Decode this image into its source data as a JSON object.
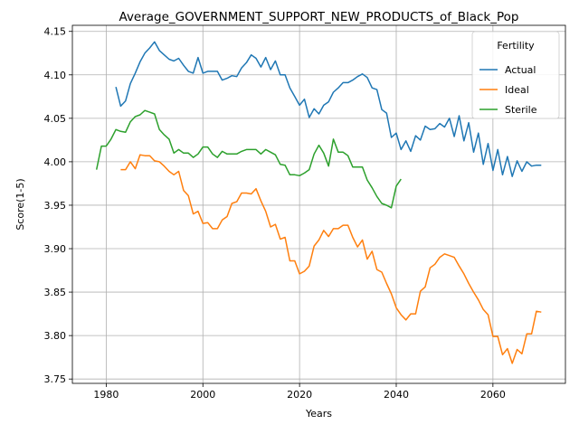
{
  "chart_data": {
    "type": "line",
    "title": "Average_GOVERNMENT_SUPPORT_NEW_PRODUCTS_of_Black_Pop",
    "xlabel": "Years",
    "ylabel": "Score(1-5)",
    "xlim": [
      1973,
      2075
    ],
    "ylim": [
      3.745,
      4.157
    ],
    "xticks": [
      1980,
      2000,
      2020,
      2040,
      2060
    ],
    "yticks": [
      3.75,
      3.8,
      3.85,
      3.9,
      3.95,
      4.0,
      4.05,
      4.1,
      4.15
    ],
    "grid": true,
    "legend": {
      "title": "Fertility",
      "position": "top-right"
    },
    "series": [
      {
        "name": "Actual",
        "color": "#1f77b4",
        "x": [
          1982,
          1983,
          1984,
          1985,
          1986,
          1987,
          1988,
          1989,
          1990,
          1991,
          1992,
          1993,
          1994,
          1995,
          1996,
          1997,
          1998,
          1999,
          2000,
          2001,
          2002,
          2003,
          2004,
          2005,
          2006,
          2007,
          2008,
          2009,
          2010,
          2011,
          2012,
          2013,
          2014,
          2015,
          2016,
          2017,
          2018,
          2019,
          2020,
          2021,
          2022,
          2023,
          2024,
          2025,
          2026,
          2027,
          2028,
          2029,
          2030,
          2031,
          2032,
          2033,
          2034,
          2035,
          2036,
          2037,
          2038,
          2039,
          2040,
          2041,
          2042,
          2043,
          2044,
          2045,
          2046,
          2047,
          2048,
          2049,
          2050,
          2051,
          2052,
          2053,
          2054,
          2055,
          2056,
          2057,
          2058,
          2059,
          2060,
          2061,
          2062,
          2063,
          2064,
          2065,
          2066,
          2067,
          2068,
          2069,
          2070
        ],
        "y": [
          4.086,
          4.064,
          4.07,
          4.09,
          4.102,
          4.115,
          4.125,
          4.131,
          4.138,
          4.128,
          4.123,
          4.118,
          4.116,
          4.119,
          4.111,
          4.104,
          4.102,
          4.12,
          4.102,
          4.104,
          4.104,
          4.104,
          4.094,
          4.096,
          4.099,
          4.098,
          4.108,
          4.114,
          4.123,
          4.119,
          4.109,
          4.12,
          4.106,
          4.116,
          4.1,
          4.1,
          4.085,
          4.075,
          4.065,
          4.072,
          4.051,
          4.061,
          4.055,
          4.065,
          4.069,
          4.08,
          4.085,
          4.091,
          4.091,
          4.094,
          4.098,
          4.101,
          4.097,
          4.085,
          4.083,
          4.06,
          4.056,
          4.028,
          4.033,
          4.014,
          4.024,
          4.012,
          4.03,
          4.025,
          4.041,
          4.037,
          4.038,
          4.044,
          4.04,
          4.05,
          4.029,
          4.053,
          4.024,
          4.045,
          4.011,
          4.033,
          3.997,
          4.021,
          3.99,
          4.014,
          3.985,
          4.006,
          3.983,
          4.001,
          3.989,
          4.0,
          3.995,
          3.996,
          3.996
        ]
      },
      {
        "name": "Ideal",
        "color": "#ff7f0e",
        "x": [
          1983,
          1984,
          1985,
          1986,
          1987,
          1988,
          1989,
          1990,
          1991,
          1992,
          1993,
          1994,
          1995,
          1996,
          1997,
          1998,
          1999,
          2000,
          2001,
          2002,
          2003,
          2004,
          2005,
          2006,
          2007,
          2008,
          2009,
          2010,
          2011,
          2012,
          2013,
          2014,
          2015,
          2016,
          2017,
          2018,
          2019,
          2020,
          2021,
          2022,
          2023,
          2024,
          2025,
          2026,
          2027,
          2028,
          2029,
          2030,
          2031,
          2032,
          2033,
          2034,
          2035,
          2036,
          2037,
          2038,
          2039,
          2040,
          2041,
          2042,
          2043,
          2044,
          2045,
          2046,
          2047,
          2048,
          2049,
          2050,
          2051,
          2052,
          2053,
          2054,
          2055,
          2056,
          2057,
          2058,
          2059,
          2060,
          2061,
          2062,
          2063,
          2064,
          2065,
          2066,
          2067,
          2068,
          2069,
          2070
        ],
        "y": [
          3.991,
          3.991,
          4.0,
          3.992,
          4.008,
          4.007,
          4.007,
          4.001,
          4.0,
          3.995,
          3.989,
          3.985,
          3.989,
          3.967,
          3.961,
          3.94,
          3.943,
          3.929,
          3.93,
          3.923,
          3.923,
          3.933,
          3.937,
          3.952,
          3.954,
          3.964,
          3.964,
          3.963,
          3.969,
          3.955,
          3.943,
          3.925,
          3.928,
          3.911,
          3.913,
          3.886,
          3.886,
          3.871,
          3.874,
          3.88,
          3.903,
          3.91,
          3.921,
          3.914,
          3.923,
          3.923,
          3.927,
          3.927,
          3.913,
          3.902,
          3.91,
          3.888,
          3.897,
          3.876,
          3.873,
          3.86,
          3.848,
          3.832,
          3.824,
          3.818,
          3.825,
          3.825,
          3.851,
          3.856,
          3.878,
          3.882,
          3.89,
          3.894,
          3.892,
          3.89,
          3.88,
          3.871,
          3.86,
          3.85,
          3.841,
          3.83,
          3.824,
          3.799,
          3.799,
          3.778,
          3.785,
          3.768,
          3.784,
          3.779,
          3.802,
          3.802,
          3.828,
          3.827
        ]
      },
      {
        "name": "Sterile",
        "color": "#2ca02c",
        "x": [
          1978,
          1979,
          1980,
          1981,
          1982,
          1983,
          1984,
          1985,
          1986,
          1987,
          1988,
          1989,
          1990,
          1991,
          1992,
          1993,
          1994,
          1995,
          1996,
          1997,
          1998,
          1999,
          2000,
          2001,
          2002,
          2003,
          2004,
          2005,
          2006,
          2007,
          2008,
          2009,
          2010,
          2011,
          2012,
          2013,
          2014,
          2015,
          2016,
          2017,
          2018,
          2019,
          2020,
          2021,
          2022,
          2023,
          2024,
          2025,
          2026,
          2027,
          2028,
          2029,
          2030,
          2031,
          2032,
          2033,
          2034,
          2035,
          2036,
          2037,
          2038,
          2039,
          2040,
          2041
        ],
        "y": [
          3.991,
          4.018,
          4.018,
          4.026,
          4.037,
          4.035,
          4.034,
          4.046,
          4.052,
          4.054,
          4.059,
          4.057,
          4.055,
          4.037,
          4.031,
          4.026,
          4.01,
          4.014,
          4.01,
          4.01,
          4.005,
          4.009,
          4.017,
          4.017,
          4.009,
          4.005,
          4.012,
          4.009,
          4.009,
          4.009,
          4.012,
          4.014,
          4.014,
          4.014,
          4.009,
          4.014,
          4.011,
          4.008,
          3.997,
          3.996,
          3.985,
          3.985,
          3.984,
          3.987,
          3.991,
          4.009,
          4.019,
          4.01,
          3.995,
          4.026,
          4.011,
          4.011,
          4.007,
          3.994,
          3.994,
          3.994,
          3.979,
          3.97,
          3.96,
          3.952,
          3.95,
          3.947,
          3.972,
          3.98
        ]
      }
    ]
  }
}
